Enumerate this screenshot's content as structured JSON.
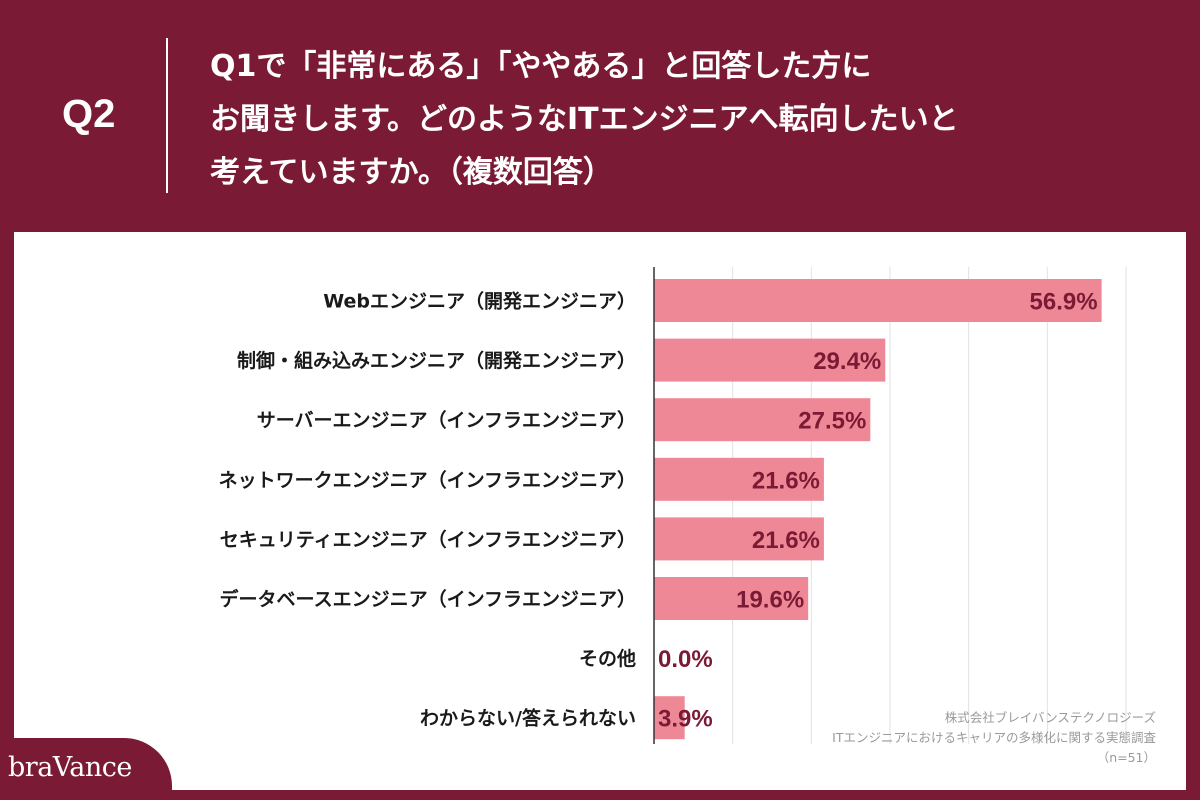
{
  "header": {
    "q_label": "Q2",
    "question_lines": [
      "Q1で「非常にある」「ややある」と回答した方に",
      "お聞きします。どのようなITエンジニアへ転向したいと",
      "考えていますか。（複数回答）"
    ]
  },
  "chart_data": {
    "type": "bar",
    "orientation": "horizontal",
    "categories": [
      "Webエンジニア（開発エンジニア）",
      "制御・組み込みエンジニア（開発エンジニア）",
      "サーバーエンジニア（インフラエンジニア）",
      "ネットワークエンジニア（インフラエンジニア）",
      "セキュリティエンジニア（インフラエンジニア）",
      "データベースエンジニア（インフラエンジニア）",
      "その他",
      "わからない/答えられない"
    ],
    "values": [
      56.9,
      29.4,
      27.5,
      21.6,
      21.6,
      19.6,
      0.0,
      3.9
    ],
    "value_labels": [
      "56.9%",
      "29.4%",
      "27.5%",
      "21.6%",
      "21.6%",
      "19.6%",
      "0.0%",
      "3.9%"
    ],
    "xlim": [
      0,
      60
    ],
    "grid": true,
    "bar_color": "#ee8896",
    "label_color": "#7b1a35"
  },
  "source": {
    "line1": "株式会社ブレイバンステクノロジーズ",
    "line2": "ITエンジニアにおけるキャリアの多様化に関する実態調査",
    "line3": "（n=51）"
  },
  "logo": {
    "text": "braVance"
  },
  "colors": {
    "brand": "#7b1a35",
    "panel": "#ffffff"
  }
}
